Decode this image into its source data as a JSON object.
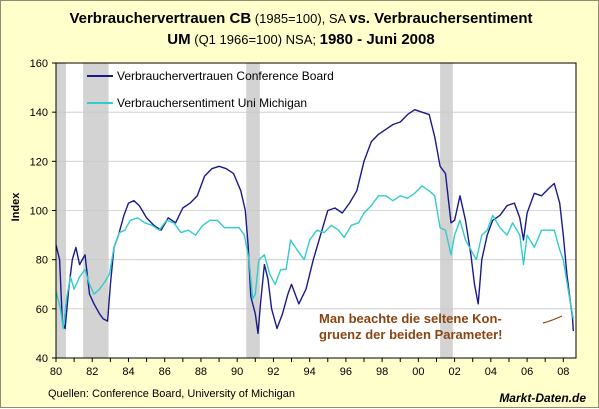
{
  "chart_data": {
    "type": "line",
    "title": {
      "line1_bold_a": "Verbrauchervertrauen CB",
      "line1_normal_a": " (1985=100), SA ",
      "line1_bold_b": "vs. Verbrauchersentiment",
      "line2_bold_a": "UM",
      "line2_normal_a": " (Q1 1966=100) NSA; ",
      "line2_bold_b": "1980 - Juni 2008"
    },
    "xlabel": "",
    "ylabel": "Index",
    "xlim": [
      1980,
      2008.7
    ],
    "ylim": [
      40,
      160
    ],
    "x_tick_labels": [
      "80",
      "82",
      "84",
      "86",
      "88",
      "90",
      "92",
      "94",
      "96",
      "98",
      "00",
      "02",
      "04",
      "06",
      "08"
    ],
    "y_tick_labels": [
      "40",
      "60",
      "80",
      "100",
      "120",
      "140",
      "160"
    ],
    "grid": "horizontal",
    "legend_position": "top-left",
    "recessions": [
      {
        "start": 1980.0,
        "end": 1980.55
      },
      {
        "start": 1981.5,
        "end": 1982.9
      },
      {
        "start": 1990.5,
        "end": 1991.25
      },
      {
        "start": 2001.2,
        "end": 2001.9
      }
    ],
    "series": [
      {
        "name": "Verbrauchervertrauen Conference Board",
        "color": "#1a1a8c",
        "points": [
          [
            1980.0,
            86
          ],
          [
            1980.2,
            80
          ],
          [
            1980.35,
            55
          ],
          [
            1980.5,
            52
          ],
          [
            1980.7,
            68
          ],
          [
            1980.9,
            80
          ],
          [
            1981.1,
            85
          ],
          [
            1981.3,
            78
          ],
          [
            1981.6,
            82
          ],
          [
            1981.85,
            66
          ],
          [
            1982.1,
            62
          ],
          [
            1982.4,
            58
          ],
          [
            1982.6,
            56
          ],
          [
            1982.85,
            55
          ],
          [
            1983.0,
            70
          ],
          [
            1983.2,
            85
          ],
          [
            1983.45,
            90
          ],
          [
            1983.75,
            98
          ],
          [
            1984.0,
            103
          ],
          [
            1984.3,
            104
          ],
          [
            1984.6,
            102
          ],
          [
            1985.0,
            97
          ],
          [
            1985.4,
            94
          ],
          [
            1985.8,
            92
          ],
          [
            1986.2,
            97
          ],
          [
            1986.6,
            95
          ],
          [
            1987.0,
            101
          ],
          [
            1987.4,
            103
          ],
          [
            1987.8,
            106
          ],
          [
            1988.2,
            114
          ],
          [
            1988.6,
            117
          ],
          [
            1989.0,
            118
          ],
          [
            1989.4,
            117
          ],
          [
            1989.8,
            115
          ],
          [
            1990.2,
            108
          ],
          [
            1990.45,
            100
          ],
          [
            1990.6,
            86
          ],
          [
            1990.75,
            65
          ],
          [
            1991.0,
            58
          ],
          [
            1991.15,
            50
          ],
          [
            1991.3,
            63
          ],
          [
            1991.5,
            78
          ],
          [
            1991.7,
            72
          ],
          [
            1991.9,
            60
          ],
          [
            1992.2,
            52
          ],
          [
            1992.5,
            58
          ],
          [
            1992.8,
            66
          ],
          [
            1993.0,
            70
          ],
          [
            1993.4,
            62
          ],
          [
            1993.8,
            68
          ],
          [
            1994.2,
            80
          ],
          [
            1994.6,
            90
          ],
          [
            1995.0,
            100
          ],
          [
            1995.4,
            101
          ],
          [
            1995.8,
            99
          ],
          [
            1996.2,
            103
          ],
          [
            1996.6,
            108
          ],
          [
            1997.0,
            120
          ],
          [
            1997.4,
            128
          ],
          [
            1997.8,
            131
          ],
          [
            1998.2,
            133
          ],
          [
            1998.6,
            135
          ],
          [
            1999.0,
            136
          ],
          [
            1999.4,
            139
          ],
          [
            1999.8,
            141
          ],
          [
            2000.2,
            140
          ],
          [
            2000.6,
            139
          ],
          [
            2000.9,
            130
          ],
          [
            2001.2,
            118
          ],
          [
            2001.5,
            115
          ],
          [
            2001.8,
            95
          ],
          [
            2002.0,
            96
          ],
          [
            2002.3,
            106
          ],
          [
            2002.6,
            96
          ],
          [
            2002.9,
            82
          ],
          [
            2003.1,
            70
          ],
          [
            2003.3,
            62
          ],
          [
            2003.5,
            80
          ],
          [
            2003.8,
            90
          ],
          [
            2004.1,
            96
          ],
          [
            2004.5,
            98
          ],
          [
            2004.9,
            102
          ],
          [
            2005.3,
            103
          ],
          [
            2005.6,
            97
          ],
          [
            2005.8,
            88
          ],
          [
            2006.0,
            99
          ],
          [
            2006.4,
            107
          ],
          [
            2006.8,
            106
          ],
          [
            2007.2,
            109
          ],
          [
            2007.5,
            111
          ],
          [
            2007.8,
            103
          ],
          [
            2008.0,
            90
          ],
          [
            2008.2,
            74
          ],
          [
            2008.4,
            62
          ],
          [
            2008.5,
            57
          ],
          [
            2008.55,
            51
          ]
        ]
      },
      {
        "name": "Verbrauchersentiment Uni Michigan",
        "color": "#33cccc",
        "points": [
          [
            1980.0,
            67
          ],
          [
            1980.25,
            60
          ],
          [
            1980.4,
            52
          ],
          [
            1980.6,
            65
          ],
          [
            1980.8,
            73
          ],
          [
            1981.0,
            68
          ],
          [
            1981.3,
            73
          ],
          [
            1981.6,
            76
          ],
          [
            1981.85,
            70
          ],
          [
            1982.1,
            66
          ],
          [
            1982.4,
            68
          ],
          [
            1982.7,
            71
          ],
          [
            1982.95,
            74
          ],
          [
            1983.2,
            85
          ],
          [
            1983.5,
            91
          ],
          [
            1983.8,
            92
          ],
          [
            1984.1,
            96
          ],
          [
            1984.5,
            97
          ],
          [
            1984.9,
            95
          ],
          [
            1985.3,
            94
          ],
          [
            1985.7,
            92
          ],
          [
            1986.1,
            96
          ],
          [
            1986.5,
            95
          ],
          [
            1986.9,
            91
          ],
          [
            1987.3,
            92
          ],
          [
            1987.7,
            90
          ],
          [
            1988.1,
            94
          ],
          [
            1988.5,
            96
          ],
          [
            1988.9,
            96
          ],
          [
            1989.3,
            93
          ],
          [
            1989.7,
            93
          ],
          [
            1990.1,
            93
          ],
          [
            1990.4,
            90
          ],
          [
            1990.65,
            80
          ],
          [
            1990.85,
            64
          ],
          [
            1991.0,
            66
          ],
          [
            1991.2,
            80
          ],
          [
            1991.5,
            82
          ],
          [
            1991.8,
            74
          ],
          [
            1992.1,
            70
          ],
          [
            1992.4,
            76
          ],
          [
            1992.7,
            76
          ],
          [
            1992.95,
            88
          ],
          [
            1993.3,
            84
          ],
          [
            1993.7,
            80
          ],
          [
            1994.0,
            88
          ],
          [
            1994.4,
            92
          ],
          [
            1994.8,
            91
          ],
          [
            1995.2,
            94
          ],
          [
            1995.6,
            92
          ],
          [
            1995.9,
            89
          ],
          [
            1996.3,
            94
          ],
          [
            1996.7,
            95
          ],
          [
            1997.0,
            99
          ],
          [
            1997.4,
            102
          ],
          [
            1997.8,
            106
          ],
          [
            1998.2,
            106
          ],
          [
            1998.6,
            104
          ],
          [
            1999.0,
            106
          ],
          [
            1999.4,
            105
          ],
          [
            1999.8,
            107
          ],
          [
            2000.2,
            110
          ],
          [
            2000.6,
            108
          ],
          [
            2000.9,
            106
          ],
          [
            2001.2,
            93
          ],
          [
            2001.5,
            92
          ],
          [
            2001.8,
            82
          ],
          [
            2002.0,
            90
          ],
          [
            2002.3,
            96
          ],
          [
            2002.6,
            88
          ],
          [
            2002.9,
            84
          ],
          [
            2003.2,
            80
          ],
          [
            2003.5,
            90
          ],
          [
            2003.8,
            92
          ],
          [
            2004.1,
            98
          ],
          [
            2004.5,
            93
          ],
          [
            2004.9,
            90
          ],
          [
            2005.2,
            95
          ],
          [
            2005.6,
            90
          ],
          [
            2005.8,
            78
          ],
          [
            2006.0,
            90
          ],
          [
            2006.4,
            85
          ],
          [
            2006.8,
            92
          ],
          [
            2007.2,
            92
          ],
          [
            2007.5,
            92
          ],
          [
            2007.8,
            84
          ],
          [
            2008.0,
            80
          ],
          [
            2008.2,
            71
          ],
          [
            2008.35,
            64
          ],
          [
            2008.5,
            58
          ],
          [
            2008.55,
            56
          ]
        ]
      }
    ],
    "annotation": {
      "line1": "Man beachte die seltene Kon-",
      "line2": "gruenz der beiden Parameter!"
    },
    "source": "Quellen: Conference Board, University of Michigan",
    "brand": "Markt-Daten.de"
  }
}
